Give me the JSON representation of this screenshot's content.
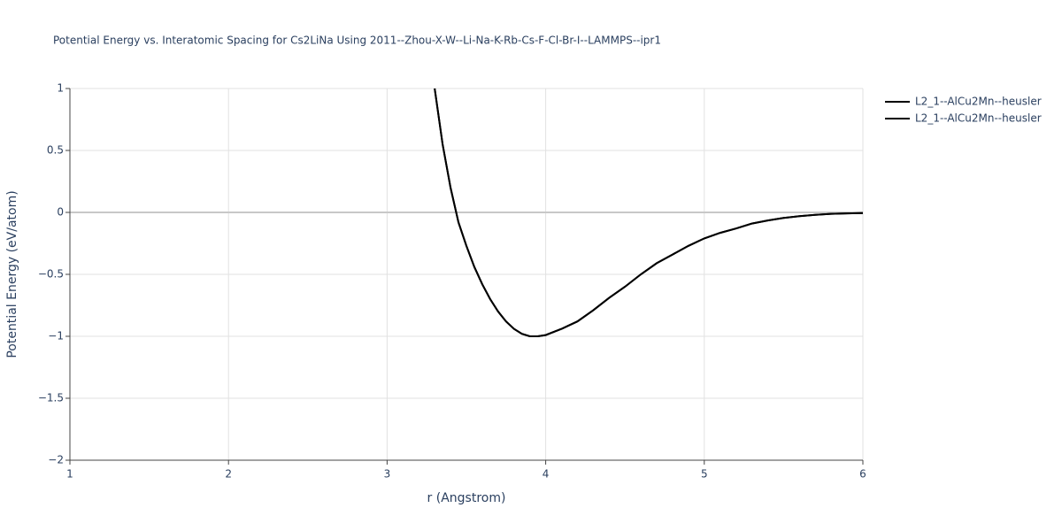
{
  "chart_data": {
    "type": "line",
    "title": "Potential Energy vs. Interatomic Spacing for Cs2LiNa Using 2011--Zhou-X-W--Li-Na-K-Rb-Cs-F-Cl-Br-I--LAMMPS--ipr1",
    "x_label": "r (Angstrom)",
    "y_label": "Potential Energy (eV/atom)",
    "x": [
      3.3,
      3.35,
      3.4,
      3.45,
      3.5,
      3.55,
      3.6,
      3.65,
      3.7,
      3.75,
      3.8,
      3.85,
      3.9,
      3.95,
      4.0,
      4.1,
      4.2,
      4.3,
      4.4,
      4.5,
      4.6,
      4.7,
      4.8,
      4.9,
      5.0,
      5.1,
      5.2,
      5.3,
      5.4,
      5.5,
      5.6,
      5.7,
      5.8,
      5.9,
      6.0
    ],
    "series": [
      {
        "name": "L2_1--AlCu2Mn--heusler",
        "color": "#000000",
        "values": [
          1.0,
          0.55,
          0.2,
          -0.08,
          -0.27,
          -0.44,
          -0.58,
          -0.7,
          -0.8,
          -0.88,
          -0.94,
          -0.98,
          -1.0,
          -1.0,
          -0.99,
          -0.94,
          -0.88,
          -0.79,
          -0.69,
          -0.6,
          -0.5,
          -0.41,
          -0.34,
          -0.27,
          -0.21,
          -0.165,
          -0.13,
          -0.09,
          -0.065,
          -0.045,
          -0.03,
          -0.02,
          -0.012,
          -0.008,
          -0.005
        ]
      },
      {
        "name": "L2_1--AlCu2Mn--heusler",
        "color": "#000000",
        "values": [
          1.0,
          0.55,
          0.2,
          -0.08,
          -0.27,
          -0.44,
          -0.58,
          -0.7,
          -0.8,
          -0.88,
          -0.94,
          -0.98,
          -1.0,
          -1.0,
          -0.99,
          -0.94,
          -0.88,
          -0.79,
          -0.69,
          -0.6,
          -0.5,
          -0.41,
          -0.34,
          -0.27,
          -0.21,
          -0.165,
          -0.13,
          -0.09,
          -0.065,
          -0.045,
          -0.03,
          -0.02,
          -0.012,
          -0.008,
          -0.005
        ]
      }
    ],
    "xlim": [
      1,
      6
    ],
    "xticks": [
      1,
      2,
      3,
      4,
      5,
      6
    ],
    "ylim": [
      -2,
      1
    ],
    "yticks": [
      {
        "value": -2,
        "label": "−2"
      },
      {
        "value": -1.5,
        "label": "−1.5"
      },
      {
        "value": -1,
        "label": "−1"
      },
      {
        "value": -0.5,
        "label": "−0.5"
      },
      0,
      0.5,
      1
    ],
    "grid": true
  }
}
